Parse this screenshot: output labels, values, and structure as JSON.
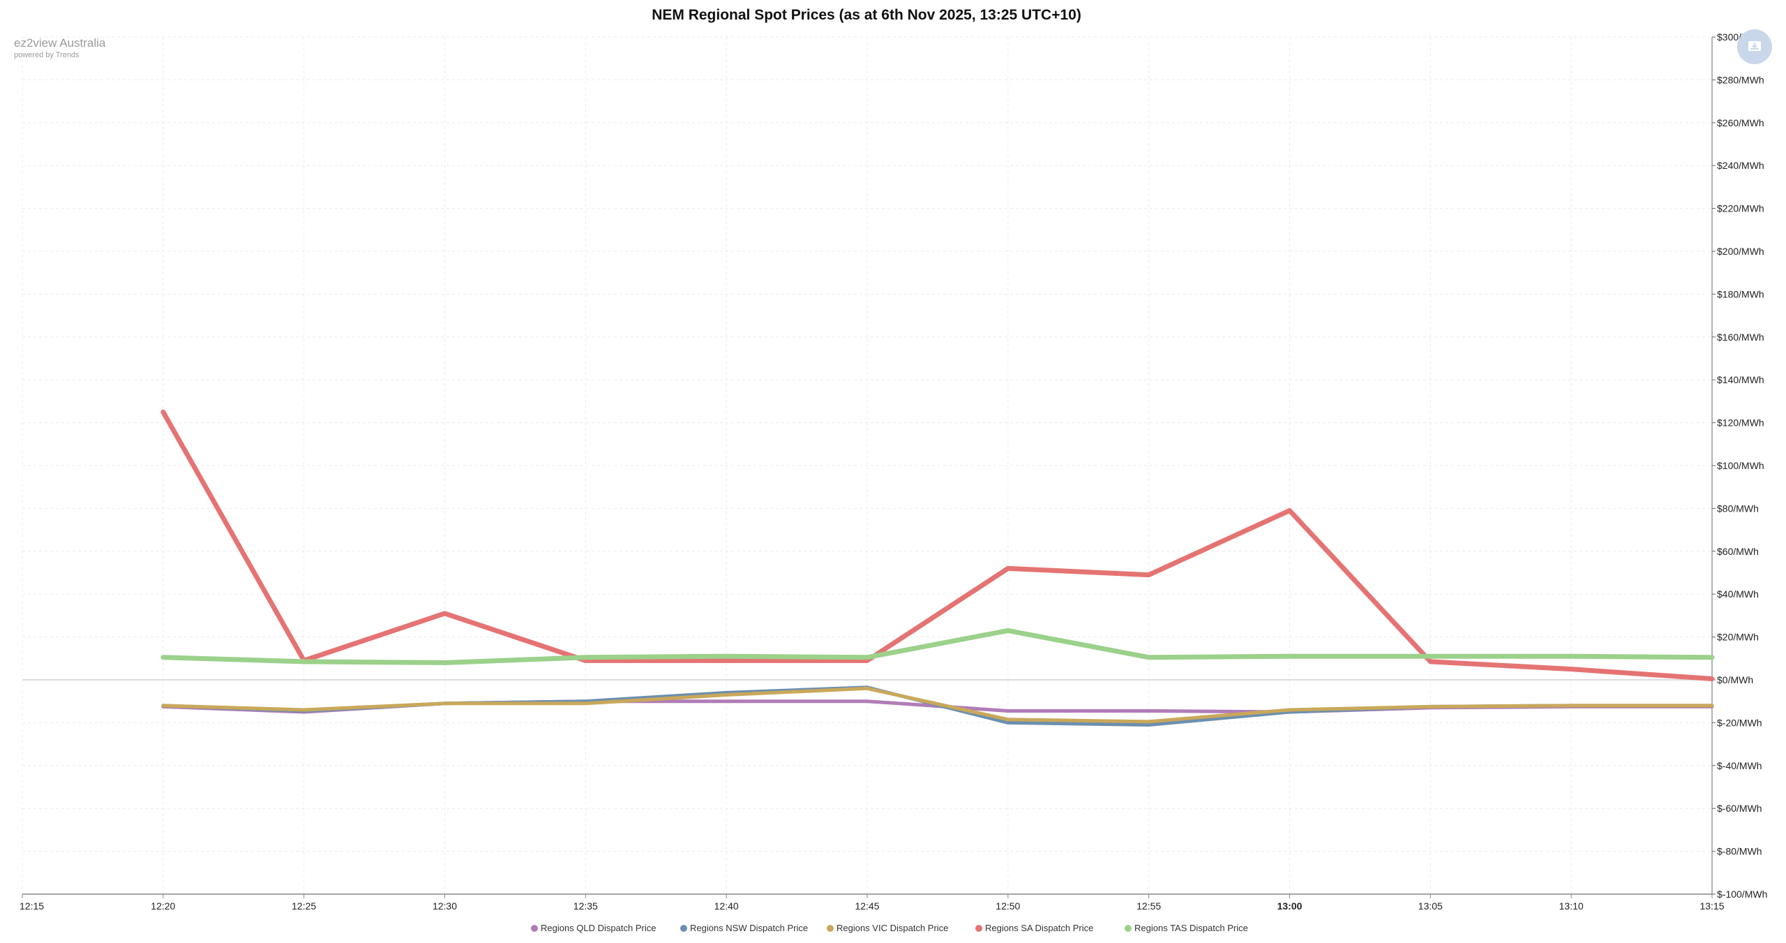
{
  "chart_data": {
    "type": "line",
    "title": "NEM Regional Spot Prices (as at 6th Nov 2025, 13:25 UTC+10)",
    "x_ticks": [
      "12:15",
      "12:20",
      "12:25",
      "12:30",
      "12:35",
      "12:40",
      "12:45",
      "12:50",
      "12:55",
      "13:00",
      "13:05",
      "13:10",
      "13:15"
    ],
    "x_tick_bold": "13:00",
    "x_range": [
      "12:15",
      "13:15"
    ],
    "y_ticks": [
      "$300/MWh",
      "$280/MWh",
      "$260/MWh",
      "$240/MWh",
      "$220/MWh",
      "$200/MWh",
      "$180/MWh",
      "$160/MWh",
      "$140/MWh",
      "$120/MWh",
      "$100/MWh",
      "$80/MWh",
      "$60/MWh",
      "$40/MWh",
      "$20/MWh",
      "$0/MWh",
      "$-20/MWh",
      "$-40/MWh",
      "$-60/MWh",
      "$-80/MWh",
      "$-100/MWh"
    ],
    "ylim": [
      -100,
      300
    ],
    "y_unit": "$/MWh",
    "grid": true,
    "legend_position": "bottom-center",
    "series": [
      {
        "name": "Regions QLD Dispatch Price",
        "color": "#b07cb7",
        "x": [
          "12:20",
          "12:25",
          "12:30",
          "12:35",
          "12:40",
          "12:45",
          "12:50",
          "12:55",
          "13:00",
          "13:05",
          "13:10",
          "13:15"
        ],
        "values": [
          -12.5,
          -15,
          -11,
          -10,
          -10,
          -10,
          -14.5,
          -14.5,
          -15,
          -13,
          -12.5,
          -12.5
        ]
      },
      {
        "name": "Regions NSW Dispatch Price",
        "color": "#6b8fb0",
        "x": [
          "12:20",
          "12:25",
          "12:30",
          "12:35",
          "12:40",
          "12:45",
          "12:50",
          "12:55",
          "13:00",
          "13:05",
          "13:10",
          "13:15"
        ],
        "values": [
          -12,
          -14.5,
          -11,
          -10,
          -6,
          -3.5,
          -20,
          -21,
          -15,
          -12.5,
          -12,
          -12
        ]
      },
      {
        "name": "Regions VIC Dispatch Price",
        "color": "#c9a85a",
        "x": [
          "12:20",
          "12:25",
          "12:30",
          "12:35",
          "12:40",
          "12:45",
          "12:50",
          "12:55",
          "13:00",
          "13:05",
          "13:10",
          "13:15"
        ],
        "values": [
          -12,
          -14,
          -11,
          -11,
          -7,
          -4,
          -18.5,
          -19.5,
          -14,
          -12.5,
          -12,
          -12
        ]
      },
      {
        "name": "Regions SA Dispatch Price",
        "color": "#e57373",
        "x": [
          "12:20",
          "12:25",
          "12:30",
          "12:35",
          "12:40",
          "12:45",
          "12:50",
          "12:55",
          "13:00",
          "13:05",
          "13:10",
          "13:15"
        ],
        "values": [
          125,
          9,
          31,
          9,
          9,
          9,
          52,
          49,
          79,
          8.5,
          5,
          0.5
        ]
      },
      {
        "name": "Regions TAS Dispatch Price",
        "color": "#9bd18a",
        "x": [
          "12:20",
          "12:25",
          "12:30",
          "12:35",
          "12:40",
          "12:45",
          "12:50",
          "12:55",
          "13:00",
          "13:05",
          "13:10",
          "13:15"
        ],
        "values": [
          10.5,
          8.5,
          8,
          10.5,
          11,
          10.5,
          23,
          10.5,
          11,
          11,
          11,
          10.5
        ]
      }
    ]
  },
  "brand": {
    "name": "ez2view Australia",
    "sub": "powered by Trends"
  },
  "export": {
    "icon": "download-icon"
  }
}
